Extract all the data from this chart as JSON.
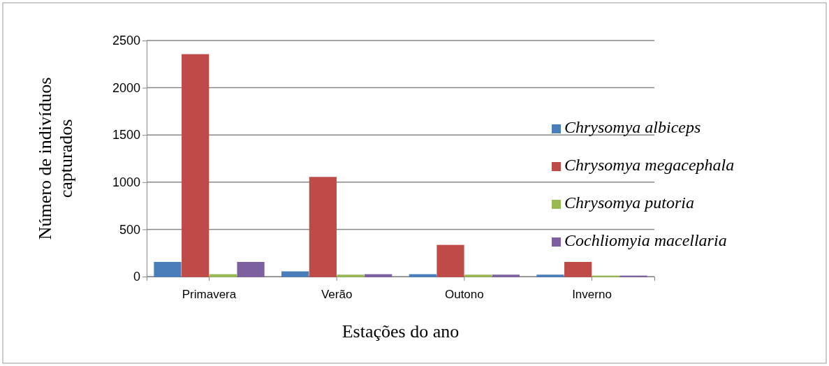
{
  "chart_data": {
    "type": "bar",
    "xlabel": "Estações do ano",
    "ylabel": "Número de indivíduos capturados",
    "categories": [
      "Primavera",
      "Verão",
      "Outono",
      "Inverno"
    ],
    "series": [
      {
        "name": "Chrysomya albiceps",
        "color": "#4a7ebb",
        "values": [
          150,
          50,
          20,
          15
        ]
      },
      {
        "name": "Chrysomya megacephala",
        "color": "#be4b48",
        "values": [
          2350,
          1050,
          330,
          150
        ]
      },
      {
        "name": "Chrysomya putoria",
        "color": "#98b954",
        "values": [
          20,
          15,
          15,
          5
        ]
      },
      {
        "name": "Cochliomyia macellaria",
        "color": "#7d60a0",
        "values": [
          150,
          20,
          15,
          5
        ]
      }
    ],
    "ylim": [
      0,
      2500
    ],
    "yticks": [
      0,
      500,
      1000,
      1500,
      2000,
      2500
    ],
    "grid": "y",
    "legend": "right"
  }
}
